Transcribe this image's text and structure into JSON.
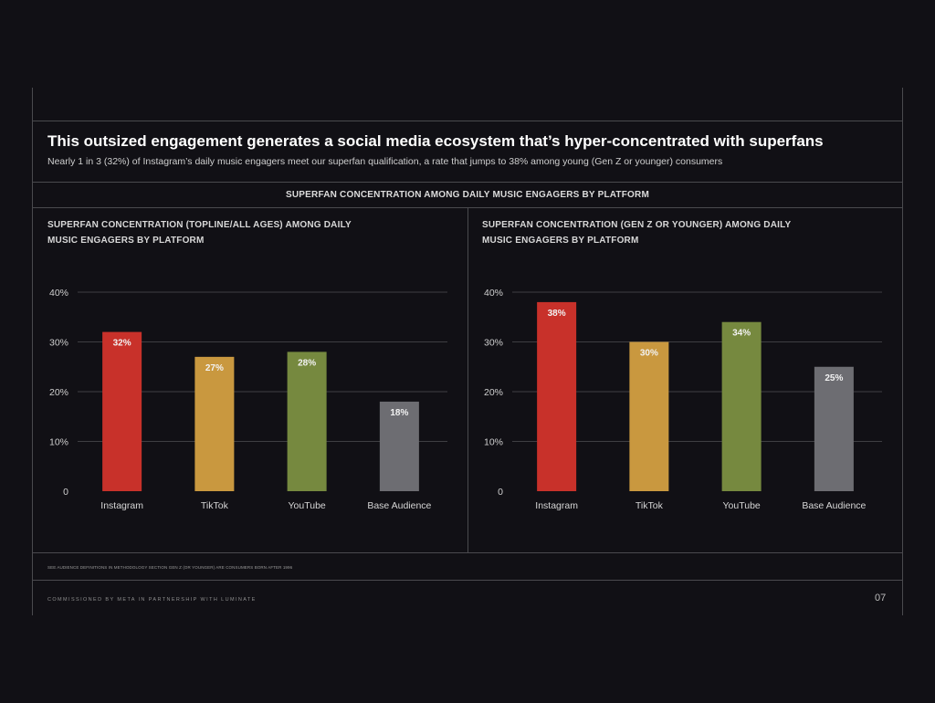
{
  "header": {
    "title": "This outsized engagement generates a social media ecosystem that’s hyper-concentrated with superfans",
    "subtitle": "Nearly 1 in 3 (32%) of Instagram’s daily music engagers meet our superfan qualification, a rate that jumps to 38% among young (Gen Z or younger) consumers"
  },
  "section_header": "SUPERFAN CONCENTRATION AMONG DAILY MUSIC ENGAGERS BY PLATFORM",
  "chart_data": [
    {
      "type": "bar",
      "title_lines": [
        "SUPERFAN CONCENTRATION (TOPLINE/ALL AGES) AMONG DAILY",
        "MUSIC ENGAGERS BY PLATFORM"
      ],
      "categories": [
        "Instagram",
        "TikTok",
        "YouTube",
        "Base Audience"
      ],
      "values": [
        32,
        27,
        28,
        18
      ],
      "data_labels": [
        "32%",
        "27%",
        "28%",
        "18%"
      ],
      "ylim": [
        0,
        40
      ],
      "yticks": [
        0,
        10,
        20,
        30,
        40
      ],
      "ytick_labels": [
        "0",
        "10%",
        "20%",
        "30%",
        "40%"
      ],
      "grid": true,
      "xlabel": "",
      "ylabel": ""
    },
    {
      "type": "bar",
      "title_lines": [
        "SUPERFAN CONCENTRATION (GEN Z OR YOUNGER) AMONG DAILY",
        "MUSIC ENGAGERS BY PLATFORM"
      ],
      "categories": [
        "Instagram",
        "TikTok",
        "YouTube",
        "Base Audience"
      ],
      "values": [
        38,
        30,
        34,
        25
      ],
      "data_labels": [
        "38%",
        "30%",
        "34%",
        "25%"
      ],
      "ylim": [
        0,
        40
      ],
      "yticks": [
        0,
        10,
        20,
        30,
        40
      ],
      "ytick_labels": [
        "0",
        "10%",
        "20%",
        "30%",
        "40%"
      ],
      "grid": true,
      "xlabel": "",
      "ylabel": ""
    }
  ],
  "colors": {
    "bars": [
      "#c8312a",
      "#c9983f",
      "#76893f",
      "#6d6d72"
    ],
    "grid": "#3e3e42",
    "bar_label": "#f2f2f2",
    "tick_label": "#cfcfcf"
  },
  "footer": {
    "footnote": "SEE AUDIENCE DEFINITIONS IN METHODOLOGY SECTION GEN Z (OR YOUNGER) ARE CONSUMERS BORN AFTER 1996",
    "credit": "COMMISSIONED BY META IN PARTNERSHIP WITH LUMINATE",
    "page_number": "07"
  }
}
